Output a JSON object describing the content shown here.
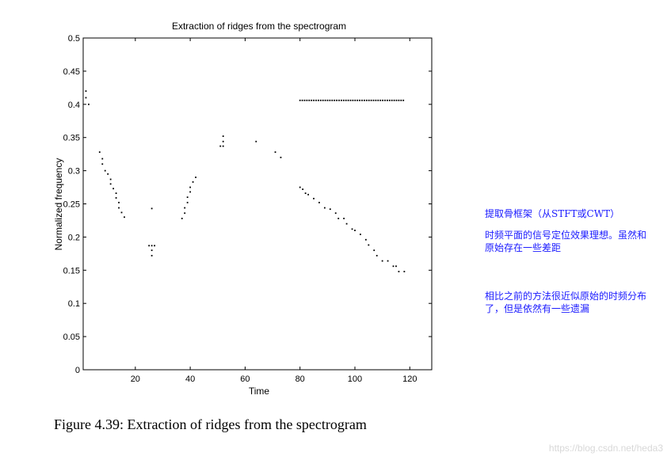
{
  "chart_data": {
    "type": "scatter",
    "title": "Extraction of ridges from the spectrogram",
    "xlabel": "Time",
    "ylabel": "Normalized frequency",
    "xlim": [
      1,
      128
    ],
    "ylim": [
      0,
      0.5
    ],
    "xticks": [
      20,
      40,
      60,
      80,
      100,
      120
    ],
    "yticks": [
      0,
      0.05,
      0.1,
      0.15,
      0.2,
      0.25,
      0.3,
      0.35,
      0.4,
      0.45,
      0.5
    ],
    "grid": false,
    "series": [
      {
        "points": [
          [
            2,
            0.42
          ],
          [
            2,
            0.41
          ],
          [
            3,
            0.4
          ],
          [
            7,
            0.328
          ],
          [
            8,
            0.318
          ],
          [
            8,
            0.31
          ],
          [
            9,
            0.3
          ],
          [
            10,
            0.295
          ],
          [
            11,
            0.287
          ],
          [
            11,
            0.28
          ],
          [
            12,
            0.273
          ],
          [
            13,
            0.266
          ],
          [
            13,
            0.259
          ],
          [
            14,
            0.252
          ],
          [
            14,
            0.244
          ],
          [
            15,
            0.237
          ],
          [
            16,
            0.23
          ],
          [
            25,
            0.187
          ],
          [
            26,
            0.187
          ],
          [
            26,
            0.18
          ],
          [
            26,
            0.172
          ],
          [
            27,
            0.187
          ],
          [
            26,
            0.243
          ],
          [
            37,
            0.228
          ],
          [
            38,
            0.236
          ],
          [
            38,
            0.244
          ],
          [
            39,
            0.252
          ],
          [
            39,
            0.26
          ],
          [
            40,
            0.268
          ],
          [
            40,
            0.275
          ],
          [
            41,
            0.283
          ],
          [
            42,
            0.29
          ],
          [
            51,
            0.337
          ],
          [
            52,
            0.337
          ],
          [
            52,
            0.344
          ],
          [
            52,
            0.352
          ],
          [
            64,
            0.344
          ],
          [
            71,
            0.328
          ],
          [
            73,
            0.32
          ],
          [
            80,
            0.275
          ],
          [
            81,
            0.272
          ],
          [
            82,
            0.266
          ],
          [
            83,
            0.264
          ],
          [
            85,
            0.258
          ],
          [
            87,
            0.252
          ],
          [
            89,
            0.244
          ],
          [
            91,
            0.242
          ],
          [
            93,
            0.236
          ],
          [
            94,
            0.228
          ],
          [
            96,
            0.228
          ],
          [
            97,
            0.22
          ],
          [
            99,
            0.212
          ],
          [
            100,
            0.21
          ],
          [
            102,
            0.204
          ],
          [
            104,
            0.196
          ],
          [
            105,
            0.188
          ],
          [
            107,
            0.18
          ],
          [
            108,
            0.172
          ],
          [
            110,
            0.164
          ],
          [
            112,
            0.164
          ],
          [
            114,
            0.156
          ],
          [
            115,
            0.156
          ],
          [
            116,
            0.148
          ],
          [
            118,
            0.148
          ]
        ],
        "hline": {
          "y": 0.406,
          "x_start": 80,
          "x_end": 118
        }
      }
    ]
  },
  "caption": "Figure 4.39: Extraction of ridges from the spectrogram",
  "notes": [
    "提取骨框架（从STFT或CWT）",
    "时频平面的信号定位效果理想。虽然和\n原始存在一些差距",
    "相比之前的方法很近似原始的时频分布\n了，但是依然有一些遗漏"
  ],
  "watermark": "https://blog.csdn.net/heda3"
}
